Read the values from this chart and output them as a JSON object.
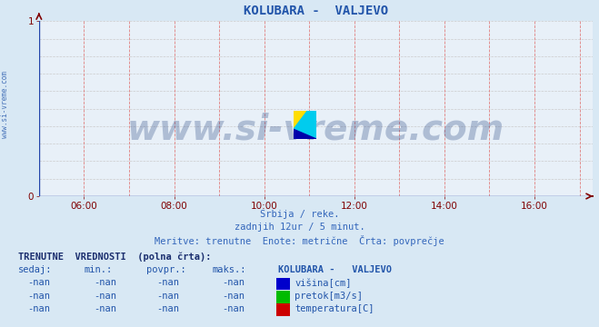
{
  "title": "KOLUBARA -  VALJEVO",
  "title_color": "#2255aa",
  "bg_color": "#d8e8f4",
  "plot_bg_color": "#e8f0f8",
  "xlim_hours": [
    5.0,
    17.3
  ],
  "ylim": [
    0,
    1
  ],
  "xticks": [
    6,
    8,
    10,
    12,
    14,
    16
  ],
  "xtick_labels": [
    "06:00",
    "08:00",
    "10:00",
    "12:00",
    "14:00",
    "16:00"
  ],
  "yticks": [
    0,
    1
  ],
  "ytick_labels": [
    "0",
    "1"
  ],
  "axis_color": "#800000",
  "tick_color": "#800000",
  "xaxis_color": "#2244aa",
  "yaxis_color": "#2244aa",
  "grid_h_color": "#cccccc",
  "grid_v_color": "#e08080",
  "watermark_text": "www.si-vreme.com",
  "watermark_color": "#1a3a7a",
  "watermark_alpha": 0.28,
  "watermark_fontsize": 28,
  "subtitle1": "Srbija / reke.",
  "subtitle2": "zadnjih 12ur / 5 minut.",
  "subtitle3": "Meritve: trenutne  Enote: metrične  Črta: povprečje",
  "subtitle_color": "#3366bb",
  "sidebar_text": "www.si-vreme.com",
  "sidebar_color": "#2255aa",
  "table_header": "TRENUTNE  VREDNOSTI  (polna črta):",
  "table_col_headers": [
    "sedaj:",
    "min.:",
    "povpr.:",
    "maks.:",
    "KOLUBARA -   VALJEVO"
  ],
  "table_rows": [
    [
      "-nan",
      "-nan",
      "-nan",
      "-nan",
      "višina[cm]",
      "#0000cc"
    ],
    [
      "-nan",
      "-nan",
      "-nan",
      "-nan",
      "pretok[m3/s]",
      "#00bb00"
    ],
    [
      "-nan",
      "-nan",
      "-nan",
      "-nan",
      "temperatura[C]",
      "#cc0000"
    ]
  ],
  "table_header_color": "#1a2e6e",
  "table_col_header_color": "#2255aa",
  "table_data_color": "#2255aa",
  "logo_yellow": "#ffdd00",
  "logo_cyan": "#00ccee",
  "logo_blue": "#0000aa"
}
